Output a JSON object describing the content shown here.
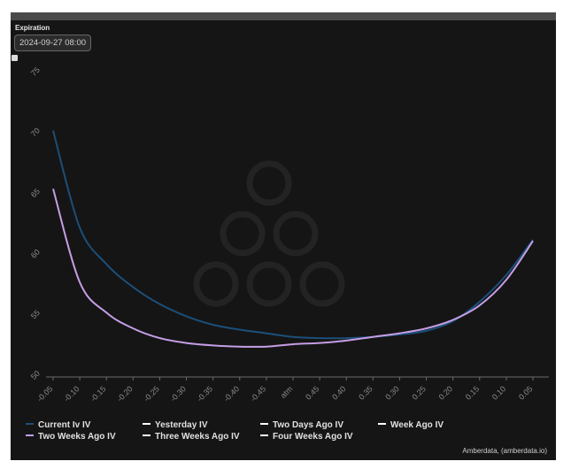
{
  "expiration": {
    "label": "Expiration",
    "value": "2024-09-27 08:00"
  },
  "credit": "Amberdata, (amberdata.io)",
  "colors": {
    "background": "#151515",
    "current": "#1b4f7a",
    "two_weeks": "#c59ee6",
    "white": "#ffffff"
  },
  "chart_data": {
    "type": "line",
    "categories": [
      "-0.05",
      "-0.10",
      "-0.15",
      "-0.20",
      "-0.25",
      "-0.30",
      "-0.35",
      "-0.40",
      "-0.45",
      "atm",
      "0.45",
      "0.40",
      "0.35",
      "0.30",
      "0.25",
      "0.20",
      "0.15",
      "0.10",
      "0.05"
    ],
    "ylim": [
      50,
      75
    ],
    "yticks": [
      50,
      55,
      60,
      65,
      70,
      75
    ],
    "grid": false,
    "legend_position": "bottom-left",
    "series": [
      {
        "name": "Current Iv IV",
        "color": "#1b4f7a",
        "values": [
          70.3,
          62.3,
          59.3,
          57.4,
          56.0,
          55.0,
          54.3,
          53.9,
          53.6,
          53.3,
          53.2,
          53.2,
          53.3,
          53.5,
          53.8,
          54.6,
          56.2,
          58.4,
          61.3
        ]
      },
      {
        "name": "Two Weeks Ago IV",
        "color": "#c59ee6",
        "values": [
          65.5,
          57.8,
          55.3,
          54.0,
          53.2,
          52.8,
          52.6,
          52.5,
          52.5,
          52.7,
          52.8,
          53.0,
          53.3,
          53.6,
          54.0,
          54.7,
          55.9,
          58.0,
          61.2
        ]
      }
    ],
    "legend_other": [
      "Yesterday IV",
      "Two Days Ago IV",
      "Week Ago IV",
      "Three Weeks Ago IV",
      "Four Weeks Ago IV"
    ]
  }
}
